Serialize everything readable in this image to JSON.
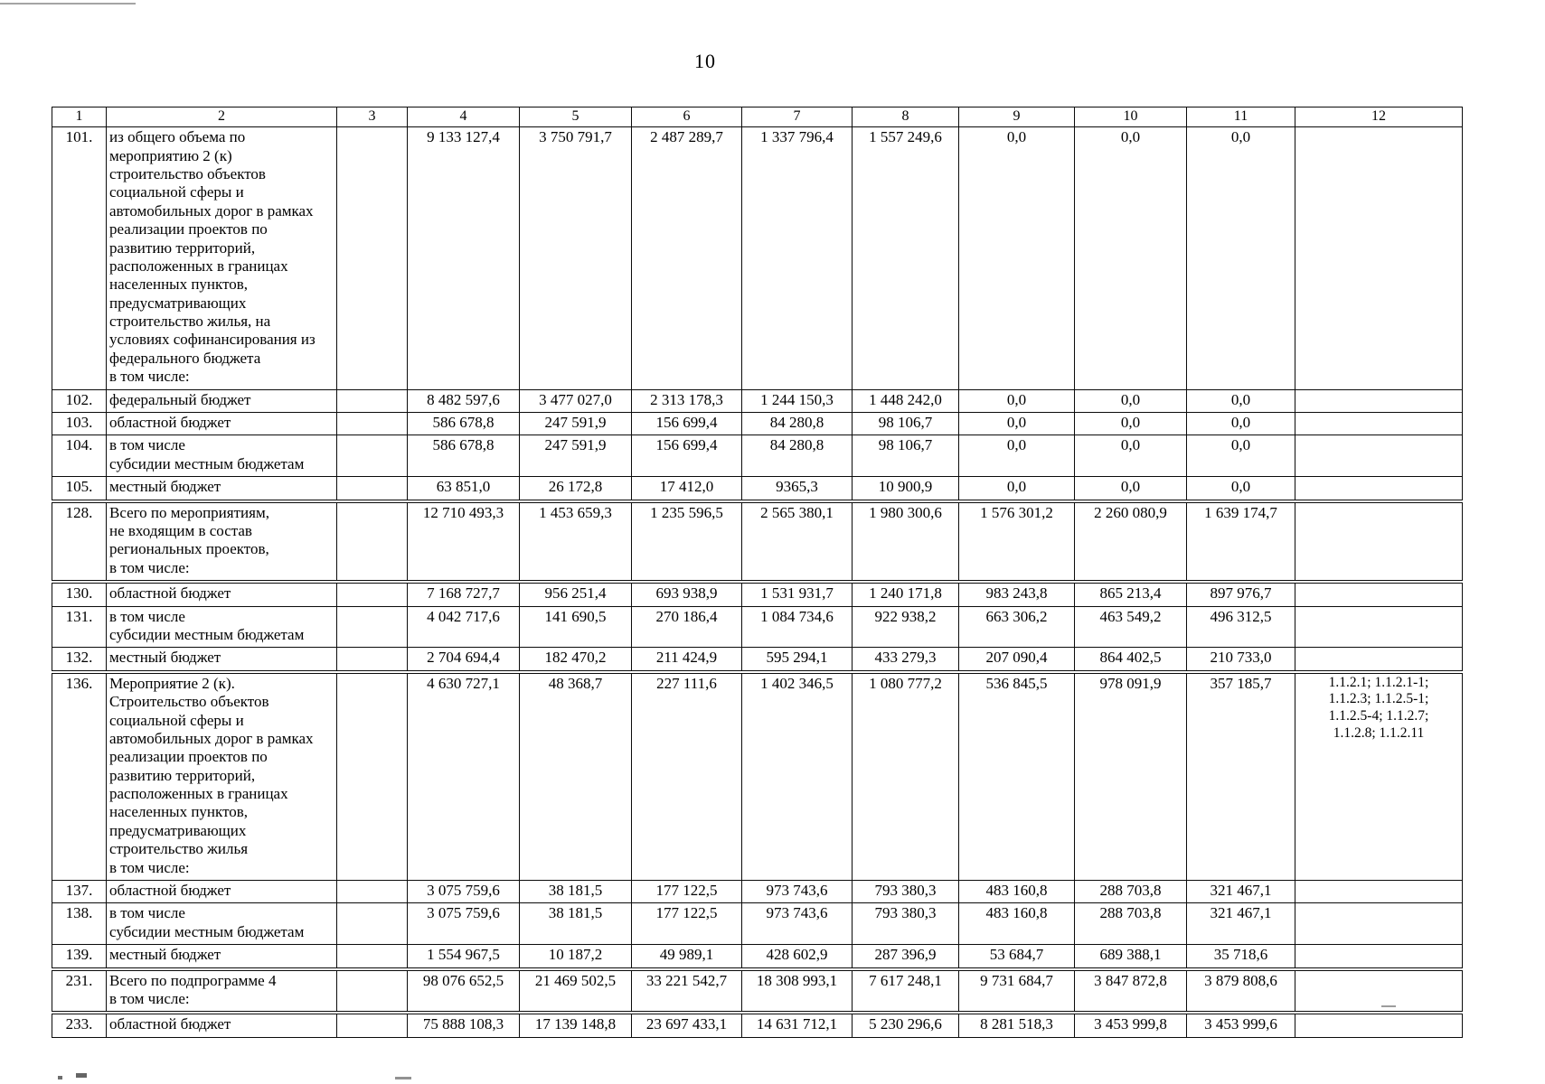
{
  "page": {
    "number": "10"
  },
  "table": {
    "header": [
      "1",
      "2",
      "3",
      "4",
      "5",
      "6",
      "7",
      "8",
      "9",
      "10",
      "11",
      "12"
    ],
    "rows": [
      {
        "num": "101.",
        "label": "из общего объема по\nмероприятию 2 (к)\nстроительство объектов\nсоциальной сферы и\nавтомобильных дорог в рамках\nреализации проектов по\nразвитию территорий,\nрасположенных в границах\nнаселенных пунктов,\nпредусматривающих\nстроительство жилья, на\nусловиях софинансирования из\nфедерального бюджета\nв том числе:",
        "values": [
          "9 133 127,4",
          "3 750 791,7",
          "2 487 289,7",
          "1 337 796,4",
          "1 557 249,6",
          "0,0",
          "0,0",
          "0,0"
        ],
        "refs": "",
        "section_start": false
      },
      {
        "num": "102.",
        "label": "федеральный бюджет",
        "values": [
          "8 482 597,6",
          "3 477 027,0",
          "2 313 178,3",
          "1 244 150,3",
          "1 448 242,0",
          "0,0",
          "0,0",
          "0,0"
        ],
        "refs": "",
        "section_start": false
      },
      {
        "num": "103.",
        "label": "областной бюджет",
        "values": [
          "586 678,8",
          "247 591,9",
          "156 699,4",
          "84 280,8",
          "98 106,7",
          "0,0",
          "0,0",
          "0,0"
        ],
        "refs": "",
        "section_start": false
      },
      {
        "num": "104.",
        "label": "в том числе\nсубсидии местным бюджетам",
        "values": [
          "586 678,8",
          "247 591,9",
          "156 699,4",
          "84 280,8",
          "98 106,7",
          "0,0",
          "0,0",
          "0,0"
        ],
        "refs": "",
        "section_start": false
      },
      {
        "num": "105.",
        "label": "местный бюджет",
        "values": [
          "63 851,0",
          "26 172,8",
          "17 412,0",
          "9365,3",
          "10 900,9",
          "0,0",
          "0,0",
          "0,0"
        ],
        "refs": "",
        "section_start": false
      },
      {
        "num": "128.",
        "label": "Всего по мероприятиям,\nне входящим в состав\nрегиональных проектов,\nв том числе:",
        "values": [
          "12 710 493,3",
          "1 453 659,3",
          "1 235 596,5",
          "2 565 380,1",
          "1 980 300,6",
          "1 576 301,2",
          "2 260 080,9",
          "1 639 174,7"
        ],
        "refs": "",
        "section_start": true
      },
      {
        "num": "130.",
        "label": "областной бюджет",
        "values": [
          "7 168 727,7",
          "956 251,4",
          "693 938,9",
          "1 531 931,7",
          "1 240 171,8",
          "983 243,8",
          "865 213,4",
          "897 976,7"
        ],
        "refs": "",
        "section_start": true
      },
      {
        "num": "131.",
        "label": "в том числе\nсубсидии местным бюджетам",
        "values": [
          "4 042 717,6",
          "141 690,5",
          "270 186,4",
          "1 084 734,6",
          "922 938,2",
          "663 306,2",
          "463 549,2",
          "496 312,5"
        ],
        "refs": "",
        "section_start": false
      },
      {
        "num": "132.",
        "label": "местный бюджет",
        "values": [
          "2 704 694,4",
          "182 470,2",
          "211 424,9",
          "595 294,1",
          "433 279,3",
          "207 090,4",
          "864 402,5",
          "210 733,0"
        ],
        "refs": "",
        "section_start": false
      },
      {
        "num": "136.",
        "label": "Мероприятие 2 (к).\nСтроительство объектов\nсоциальной сферы и\nавтомобильных дорог в рамках\nреализации проектов по\nразвитию территорий,\nрасположенных в границах\nнаселенных пунктов,\nпредусматривающих\nстроительство жилья\nв том числе:",
        "values": [
          "4 630 727,1",
          "48 368,7",
          "227 111,6",
          "1 402 346,5",
          "1 080 777,2",
          "536 845,5",
          "978 091,9",
          "357 185,7"
        ],
        "refs": "1.1.2.1; 1.1.2.1-1;\n1.1.2.3; 1.1.2.5-1;\n1.1.2.5-4; 1.1.2.7;\n1.1.2.8; 1.1.2.11",
        "section_start": true
      },
      {
        "num": "137.",
        "label": "областной бюджет",
        "values": [
          "3 075 759,6",
          "38 181,5",
          "177 122,5",
          "973 743,6",
          "793 380,3",
          "483 160,8",
          "288 703,8",
          "321 467,1"
        ],
        "refs": "",
        "section_start": false
      },
      {
        "num": "138.",
        "label": "в том числе\nсубсидии местным бюджетам",
        "values": [
          "3 075 759,6",
          "38 181,5",
          "177 122,5",
          "973 743,6",
          "793 380,3",
          "483 160,8",
          "288 703,8",
          "321 467,1"
        ],
        "refs": "",
        "section_start": false
      },
      {
        "num": "139.",
        "label": "местный бюджет",
        "values": [
          "1 554 967,5",
          "10 187,2",
          "49 989,1",
          "428 602,9",
          "287 396,9",
          "53 684,7",
          "689 388,1",
          "35 718,6"
        ],
        "refs": "",
        "section_start": false
      },
      {
        "num": "231.",
        "label": "Всего по подпрограмме 4\nв том числе:",
        "values": [
          "98 076 652,5",
          "21 469 502,5",
          "33 221 542,7",
          "18 308 993,1",
          "7 617 248,1",
          "9 731 684,7",
          "3 847 872,8",
          "3 879 808,6"
        ],
        "refs": "",
        "section_start": true
      },
      {
        "num": "233.",
        "label": "областной бюджет",
        "values": [
          "75 888 108,3",
          "17 139 148,8",
          "23 697 433,1",
          "14 631 712,1",
          "5 230 296,6",
          "8 281 518,3",
          "3 453 999,8",
          "3 453 999,6"
        ],
        "refs": "",
        "section_start": true
      }
    ]
  }
}
